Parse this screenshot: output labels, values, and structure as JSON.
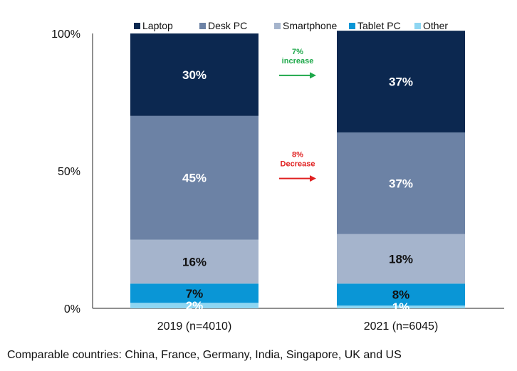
{
  "chart_data": {
    "type": "bar",
    "stacked": true,
    "title": "",
    "xlabel": "",
    "ylabel": "",
    "ylim": [
      0,
      100
    ],
    "yticks": [
      "0%",
      "50%",
      "100%"
    ],
    "categories": [
      "2019 (n=4010)",
      "2021 (n=6045)"
    ],
    "series": [
      {
        "name": "Laptop",
        "color": "#0c2850",
        "values": [
          30,
          37
        ],
        "labels": [
          "30%",
          "37%"
        ],
        "label_color": "#ffffff"
      },
      {
        "name": "Desk PC",
        "color": "#6c82a5",
        "values": [
          45,
          37
        ],
        "labels": [
          "45%",
          "37%"
        ],
        "label_color": "#ffffff"
      },
      {
        "name": "Smartphone",
        "color": "#a5b4cc",
        "values": [
          16,
          18
        ],
        "labels": [
          "16%",
          "18%"
        ],
        "label_color": "#111111"
      },
      {
        "name": "Tablet PC",
        "color": "#0a96d6",
        "values": [
          7,
          8
        ],
        "labels": [
          "7%",
          "8%"
        ],
        "label_color": "#111111"
      },
      {
        "name": "Other",
        "color": "#8ed6f2",
        "values": [
          2,
          1
        ],
        "labels": [
          "2%",
          "1%"
        ],
        "label_color": "#ffffff"
      }
    ],
    "legend_position": "top-right",
    "annotations": [
      {
        "line1": "7%",
        "line2": "increase",
        "color": "#1ea84a",
        "series": "Laptop"
      },
      {
        "line1": "8%",
        "line2": "Decrease",
        "color": "#e02020",
        "series": "Desk PC"
      }
    ]
  },
  "footnote": "Comparable countries: China, France, Germany, India, Singapore, UK and US"
}
